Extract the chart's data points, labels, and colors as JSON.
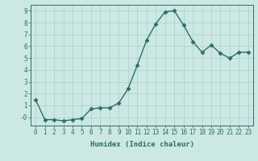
{
  "x": [
    0,
    1,
    2,
    3,
    4,
    5,
    6,
    7,
    8,
    9,
    10,
    11,
    12,
    13,
    14,
    15,
    16,
    17,
    18,
    19,
    20,
    21,
    22,
    23
  ],
  "y": [
    1.5,
    -0.2,
    -0.2,
    -0.3,
    -0.2,
    -0.1,
    0.7,
    0.8,
    0.8,
    1.2,
    2.4,
    4.4,
    6.5,
    7.9,
    8.9,
    9.0,
    7.8,
    6.4,
    5.5,
    6.1,
    5.4,
    5.0,
    5.5,
    5.5
  ],
  "line_color": "#2d6e62",
  "marker": "D",
  "marker_size": 2.5,
  "bg_color": "#cce8e4",
  "grid_color": "#aacfcb",
  "xlabel": "Humidex (Indice chaleur)",
  "xlim": [
    -0.5,
    23.5
  ],
  "ylim": [
    -0.7,
    9.5
  ],
  "yticks": [
    0,
    1,
    2,
    3,
    4,
    5,
    6,
    7,
    8,
    9
  ],
  "ytick_labels": [
    "-0",
    "1",
    "2",
    "3",
    "4",
    "5",
    "6",
    "7",
    "8",
    "9"
  ],
  "xticks": [
    0,
    1,
    2,
    3,
    4,
    5,
    6,
    7,
    8,
    9,
    10,
    11,
    12,
    13,
    14,
    15,
    16,
    17,
    18,
    19,
    20,
    21,
    22,
    23
  ],
  "tick_fontsize": 5.5,
  "xlabel_fontsize": 6.5,
  "line_width": 1.0,
  "spine_color": "#2d6e62"
}
